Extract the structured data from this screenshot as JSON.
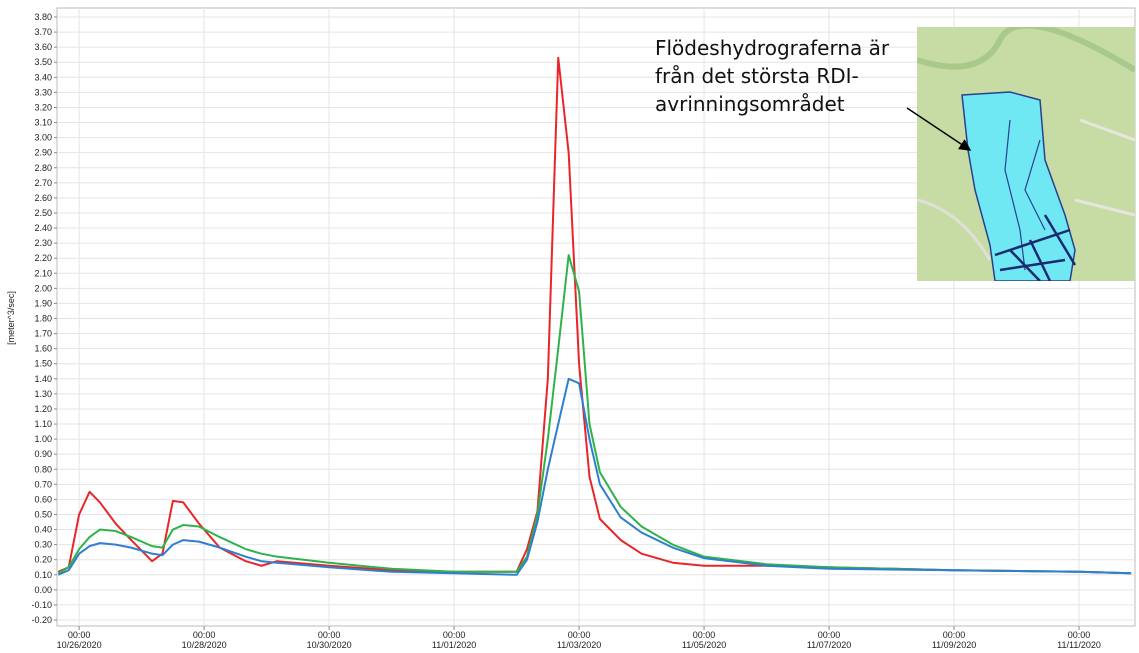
{
  "chart_data": {
    "type": "line",
    "y_label": "[meter^3/sec]",
    "annotation": [
      "Flödeshydrograferna är",
      "från det största RDI-",
      "avrinningsområdet"
    ],
    "grid": true,
    "xlim": [
      "2020-10-25T15:30",
      "2020-11-11T21:30"
    ],
    "ylim": [
      -0.2,
      3.8
    ],
    "xticks": [
      {
        "value": "2020-10-26T00:00",
        "label": [
          "00:00",
          "10/26/2020"
        ]
      },
      {
        "value": "2020-10-28T00:00",
        "label": [
          "00:00",
          "10/28/2020"
        ]
      },
      {
        "value": "2020-10-30T00:00",
        "label": [
          "00:00",
          "10/30/2020"
        ]
      },
      {
        "value": "2020-11-01T00:00",
        "label": [
          "00:00",
          "11/01/2020"
        ]
      },
      {
        "value": "2020-11-03T00:00",
        "label": [
          "00:00",
          "11/03/2020"
        ]
      },
      {
        "value": "2020-11-05T00:00",
        "label": [
          "00:00",
          "11/05/2020"
        ]
      },
      {
        "value": "2020-11-07T00:00",
        "label": [
          "00:00",
          "11/07/2020"
        ]
      },
      {
        "value": "2020-11-09T00:00",
        "label": [
          "00:00",
          "11/09/2020"
        ]
      },
      {
        "value": "2020-11-11T00:00",
        "label": [
          "00:00",
          "11/11/2020"
        ]
      }
    ],
    "yticks": [
      {
        "value": -0.2,
        "label": "-0.20"
      },
      {
        "value": -0.1,
        "label": "-0.10"
      },
      {
        "value": 0,
        "label": "0.00"
      },
      {
        "value": 0.1,
        "label": "0.10"
      },
      {
        "value": 0.2,
        "label": "0.20"
      },
      {
        "value": 0.3,
        "label": "0.30"
      },
      {
        "value": 0.4,
        "label": "0.40"
      },
      {
        "value": 0.5,
        "label": "0.50"
      },
      {
        "value": 0.6,
        "label": "0.60"
      },
      {
        "value": 0.7,
        "label": "0.70"
      },
      {
        "value": 0.8,
        "label": "0.80"
      },
      {
        "value": 0.9,
        "label": "0.90"
      },
      {
        "value": 1.0,
        "label": "1.00"
      },
      {
        "value": 1.1,
        "label": "1.10"
      },
      {
        "value": 1.2,
        "label": "1.20"
      },
      {
        "value": 1.3,
        "label": "1.30"
      },
      {
        "value": 1.4,
        "label": "1.40"
      },
      {
        "value": 1.5,
        "label": "1.50"
      },
      {
        "value": 1.6,
        "label": "1.60"
      },
      {
        "value": 1.7,
        "label": "1.70"
      },
      {
        "value": 1.8,
        "label": "1.80"
      },
      {
        "value": 1.9,
        "label": "1.90"
      },
      {
        "value": 2.0,
        "label": "2.00"
      },
      {
        "value": 2.1,
        "label": "2.10"
      },
      {
        "value": 2.2,
        "label": "2.20"
      },
      {
        "value": 2.3,
        "label": "2.30"
      },
      {
        "value": 2.4,
        "label": "2.40"
      },
      {
        "value": 2.5,
        "label": "2.50"
      },
      {
        "value": 2.6,
        "label": "2.60"
      },
      {
        "value": 2.7,
        "label": "2.70"
      },
      {
        "value": 2.8,
        "label": "2.80"
      },
      {
        "value": 2.9,
        "label": "2.90"
      },
      {
        "value": 3.0,
        "label": "3.00"
      },
      {
        "value": 3.1,
        "label": "3.10"
      },
      {
        "value": 3.2,
        "label": "3.20"
      },
      {
        "value": 3.3,
        "label": "3.30"
      },
      {
        "value": 3.4,
        "label": "3.40"
      },
      {
        "value": 3.5,
        "label": "3.50"
      },
      {
        "value": 3.6,
        "label": "3.60"
      },
      {
        "value": 3.7,
        "label": "3.70"
      },
      {
        "value": 3.8,
        "label": "3.80"
      }
    ],
    "x": [
      "2020-10-25T16:00",
      "2020-10-25T20:00",
      "2020-10-26T00:00",
      "2020-10-26T04:00",
      "2020-10-26T08:00",
      "2020-10-26T14:00",
      "2020-10-26T20:00",
      "2020-10-27T04:00",
      "2020-10-27T08:00",
      "2020-10-27T12:00",
      "2020-10-27T16:00",
      "2020-10-27T22:00",
      "2020-10-28T06:00",
      "2020-10-28T16:00",
      "2020-10-28T22:00",
      "2020-10-29T04:00",
      "2020-10-30T00:00",
      "2020-10-31T00:00",
      "2020-11-01T00:00",
      "2020-11-02T00:00",
      "2020-11-02T04:00",
      "2020-11-02T08:00",
      "2020-11-02T12:00",
      "2020-11-02T16:00",
      "2020-11-02T20:00",
      "2020-11-03T00:00",
      "2020-11-03T04:00",
      "2020-11-03T08:00",
      "2020-11-03T16:00",
      "2020-11-04T00:00",
      "2020-11-04T12:00",
      "2020-11-05T00:00",
      "2020-11-06T00:00",
      "2020-11-07T00:00",
      "2020-11-09T00:00",
      "2020-11-11T00:00",
      "2020-11-11T20:00"
    ],
    "series": [
      {
        "color": "#e8262a",
        "values": [
          0.12,
          0.15,
          0.5,
          0.65,
          0.58,
          0.44,
          0.33,
          0.19,
          0.24,
          0.59,
          0.58,
          0.44,
          0.28,
          0.19,
          0.16,
          0.19,
          0.16,
          0.13,
          0.12,
          0.12,
          0.27,
          0.52,
          1.4,
          3.53,
          2.9,
          1.5,
          0.75,
          0.47,
          0.33,
          0.24,
          0.18,
          0.16,
          0.16,
          0.15,
          0.13,
          0.12,
          0.11
        ]
      },
      {
        "color": "#2db34a",
        "values": [
          0.11,
          0.15,
          0.27,
          0.35,
          0.4,
          0.39,
          0.35,
          0.29,
          0.28,
          0.4,
          0.43,
          0.42,
          0.35,
          0.27,
          0.24,
          0.22,
          0.18,
          0.14,
          0.12,
          0.12,
          0.22,
          0.5,
          1.0,
          1.6,
          2.22,
          1.98,
          1.1,
          0.78,
          0.55,
          0.42,
          0.3,
          0.22,
          0.17,
          0.15,
          0.13,
          0.12,
          0.11
        ]
      },
      {
        "color": "#2f7fd0",
        "values": [
          0.1,
          0.13,
          0.24,
          0.29,
          0.31,
          0.3,
          0.28,
          0.24,
          0.23,
          0.3,
          0.33,
          0.32,
          0.28,
          0.22,
          0.19,
          0.18,
          0.15,
          0.12,
          0.11,
          0.1,
          0.2,
          0.45,
          0.8,
          1.1,
          1.4,
          1.37,
          1.0,
          0.7,
          0.48,
          0.38,
          0.28,
          0.21,
          0.16,
          0.14,
          0.13,
          0.12,
          0.11
        ]
      }
    ]
  }
}
